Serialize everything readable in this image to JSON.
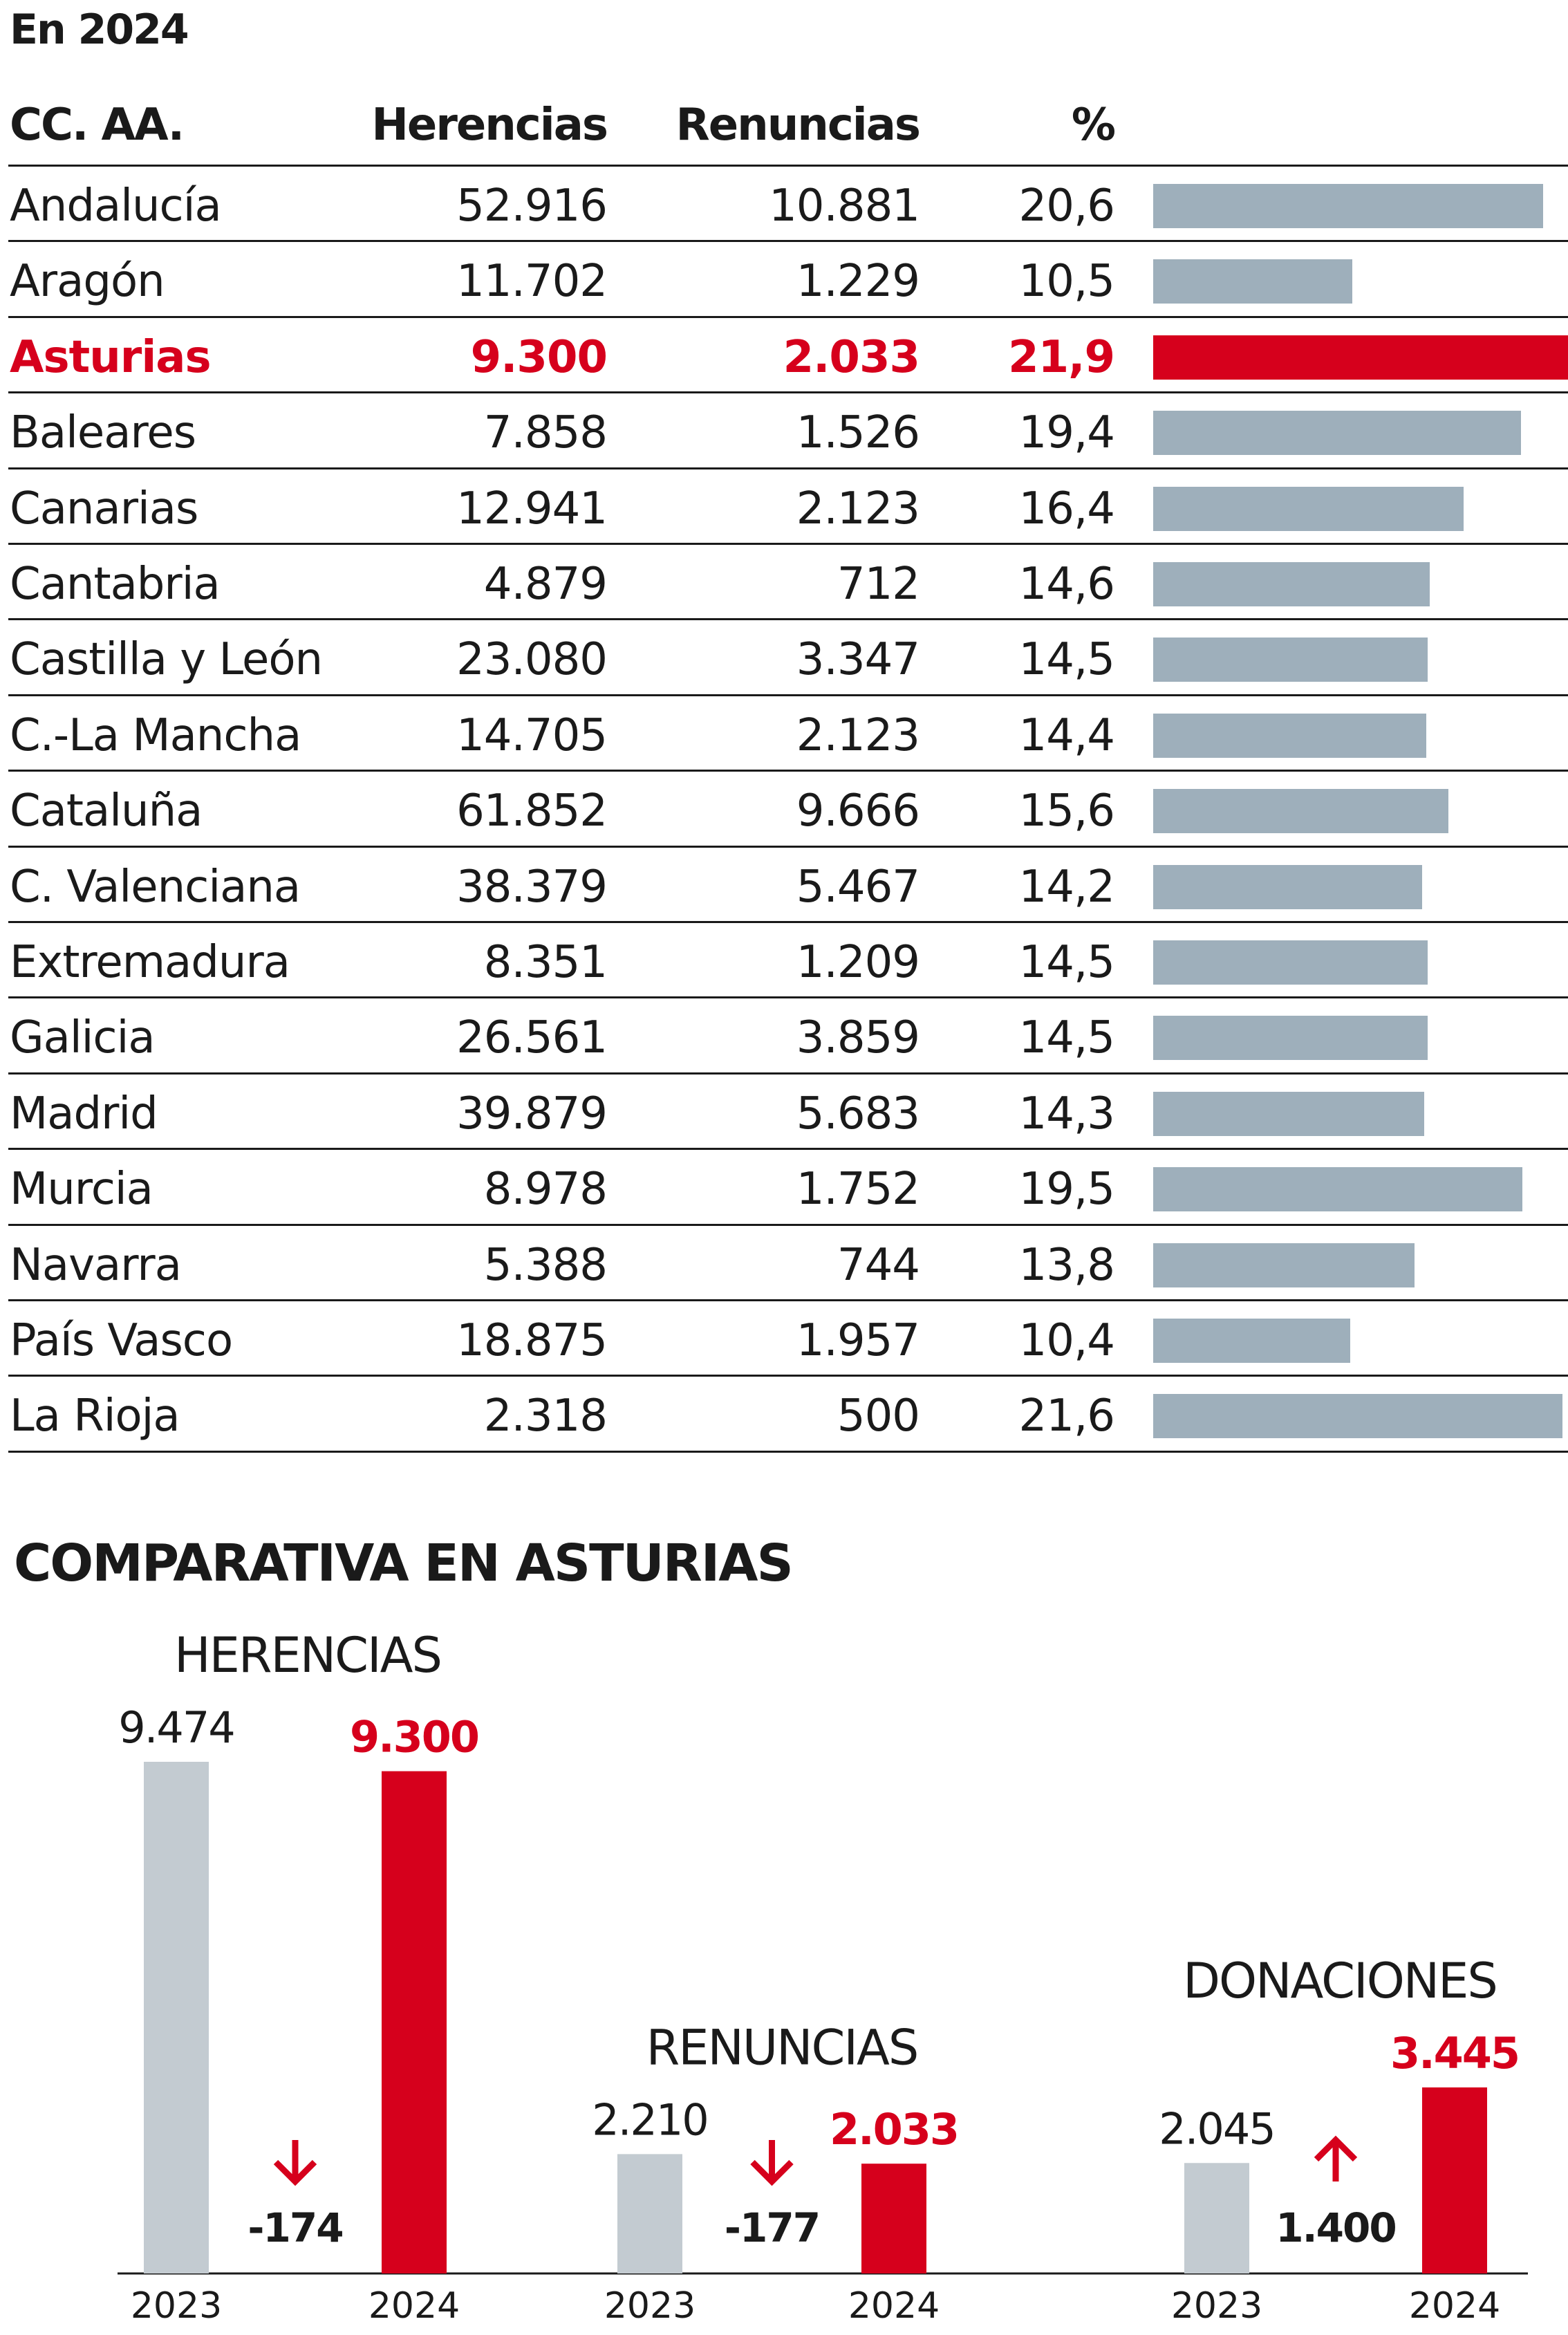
{
  "caption": "En 2024",
  "colors": {
    "accent": "#d6001c",
    "bar": "#9eafbb",
    "prev": "#c3cbd1"
  },
  "table": {
    "headers": {
      "region": "CC. AA.",
      "herencias": "Herencias",
      "renuncias": "Renuncias",
      "pct": "%"
    },
    "highlight": "Asturias"
  },
  "chart_data": [
    {
      "type": "table",
      "columns": [
        "CC. AA.",
        "Herencias",
        "Renuncias",
        "%"
      ],
      "bar_column": "%",
      "xlim": [
        0,
        21.9
      ],
      "rows": [
        {
          "region": "Andalucía",
          "herencias": "52.916",
          "renuncias": "10.881",
          "pct": "20,6",
          "value": 20.6
        },
        {
          "region": "Aragón",
          "herencias": "11.702",
          "renuncias": "1.229",
          "pct": "10,5",
          "value": 10.5
        },
        {
          "region": "Asturias",
          "herencias": "9.300",
          "renuncias": "2.033",
          "pct": "21,9",
          "value": 21.9
        },
        {
          "region": "Baleares",
          "herencias": "7.858",
          "renuncias": "1.526",
          "pct": "19,4",
          "value": 19.4
        },
        {
          "region": "Canarias",
          "herencias": "12.941",
          "renuncias": "2.123",
          "pct": "16,4",
          "value": 16.4
        },
        {
          "region": "Cantabria",
          "herencias": "4.879",
          "renuncias": "712",
          "pct": "14,6",
          "value": 14.6
        },
        {
          "region": "Castilla y León",
          "herencias": "23.080",
          "renuncias": "3.347",
          "pct": "14,5",
          "value": 14.5
        },
        {
          "region": "C.-La Mancha",
          "herencias": "14.705",
          "renuncias": "2.123",
          "pct": "14,4",
          "value": 14.4
        },
        {
          "region": "Cataluña",
          "herencias": "61.852",
          "renuncias": "9.666",
          "pct": "15,6",
          "value": 15.6
        },
        {
          "region": "C. Valenciana",
          "herencias": "38.379",
          "renuncias": "5.467",
          "pct": "14,2",
          "value": 14.2
        },
        {
          "region": "Extremadura",
          "herencias": "8.351",
          "renuncias": "1.209",
          "pct": "14,5",
          "value": 14.5
        },
        {
          "region": "Galicia",
          "herencias": "26.561",
          "renuncias": "3.859",
          "pct": "14,5",
          "value": 14.5
        },
        {
          "region": "Madrid",
          "herencias": "39.879",
          "renuncias": "5.683",
          "pct": "14,3",
          "value": 14.3
        },
        {
          "region": "Murcia",
          "herencias": "8.978",
          "renuncias": "1.752",
          "pct": "19,5",
          "value": 19.5
        },
        {
          "region": "Navarra",
          "herencias": "5.388",
          "renuncias": "744",
          "pct": "13,8",
          "value": 13.8
        },
        {
          "region": "País Vasco",
          "herencias": "18.875",
          "renuncias": "1.957",
          "pct": "10,4",
          "value": 10.4
        },
        {
          "region": "La Rioja",
          "herencias": "2.318",
          "renuncias": "500",
          "pct": "21,6",
          "value": 21.6
        }
      ]
    },
    {
      "type": "bar",
      "title": "COMPARATIVA EN ASTURIAS",
      "categories": [
        "2023",
        "2024"
      ],
      "ylim": [
        0,
        9474
      ],
      "groups": [
        {
          "name": "HERENCIAS",
          "values": [
            9474,
            9300
          ],
          "labels": [
            "9.474",
            "9.300"
          ],
          "change": "-174",
          "direction": "down"
        },
        {
          "name": "RENUNCIAS",
          "values": [
            2210,
            2033
          ],
          "labels": [
            "2.210",
            "2.033"
          ],
          "change": "-177",
          "direction": "down"
        },
        {
          "name": "DONACIONES",
          "values": [
            2045,
            3445
          ],
          "labels": [
            "2.045",
            "3.445"
          ],
          "change": "1.400",
          "direction": "up"
        }
      ]
    }
  ]
}
